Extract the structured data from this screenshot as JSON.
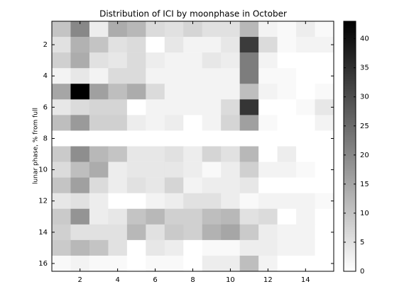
{
  "chart_data": {
    "type": "heatmap",
    "title": "Distribution of ICI by moonphase in October",
    "ylabel": "lunar phase, % from full",
    "z": [
      [
        10,
        20,
        3,
        14,
        12,
        6,
        5,
        7,
        5,
        5,
        12,
        2,
        1,
        3,
        1
      ],
      [
        5,
        13,
        10,
        5,
        6,
        0,
        4,
        2,
        2,
        4,
        33,
        6,
        1,
        2,
        2
      ],
      [
        8,
        14,
        5,
        4,
        6,
        3,
        2,
        2,
        4,
        3,
        22,
        2,
        0,
        0,
        0
      ],
      [
        2,
        4,
        2,
        6,
        6,
        2,
        2,
        2,
        2,
        2,
        22,
        1,
        1,
        0,
        0
      ],
      [
        15,
        43,
        16,
        11,
        14,
        6,
        2,
        2,
        2,
        2,
        11,
        2,
        1,
        0,
        1
      ],
      [
        4,
        6,
        7,
        7,
        0,
        2,
        2,
        2,
        2,
        6,
        34,
        0,
        0,
        1,
        4
      ],
      [
        11,
        17,
        8,
        8,
        3,
        2,
        3,
        0,
        2,
        7,
        16,
        1,
        0,
        0,
        2
      ],
      [
        0,
        0,
        0,
        0,
        0,
        0,
        0,
        0,
        0,
        0,
        0,
        0,
        0,
        0,
        0
      ],
      [
        9,
        19,
        12,
        10,
        4,
        4,
        5,
        3,
        7,
        5,
        12,
        0,
        3,
        0,
        0
      ],
      [
        6,
        11,
        14,
        3,
        4,
        4,
        4,
        3,
        1,
        3,
        8,
        2,
        2,
        1,
        0
      ],
      [
        10,
        16,
        6,
        3,
        5,
        4,
        7,
        2,
        3,
        3,
        4,
        0,
        0,
        0,
        0
      ],
      [
        4,
        5,
        3,
        0,
        0,
        2,
        3,
        5,
        5,
        3,
        1,
        2,
        2,
        2,
        1
      ],
      [
        9,
        18,
        3,
        4,
        10,
        12,
        8,
        8,
        11,
        12,
        5,
        6,
        0,
        2,
        0
      ],
      [
        8,
        5,
        5,
        5,
        12,
        5,
        9,
        8,
        13,
        15,
        9,
        3,
        2,
        2,
        0
      ],
      [
        9,
        12,
        10,
        5,
        0,
        4,
        3,
        0,
        1,
        1,
        3,
        3,
        2,
        2,
        0
      ],
      [
        1,
        2,
        1,
        1,
        0,
        1,
        1,
        0,
        3,
        3,
        11,
        2,
        0,
        0,
        0
      ]
    ],
    "xlim": [
      0.5,
      15.5
    ],
    "ylim": [
      16.5,
      0.5
    ],
    "xticks": [
      2,
      4,
      6,
      8,
      10,
      12,
      14
    ],
    "yticks": [
      2,
      4,
      6,
      8,
      10,
      12,
      14,
      16
    ],
    "clim": [
      0,
      43
    ],
    "colorbar_ticks": [
      0,
      5,
      10,
      15,
      20,
      25,
      30,
      35,
      40
    ]
  }
}
